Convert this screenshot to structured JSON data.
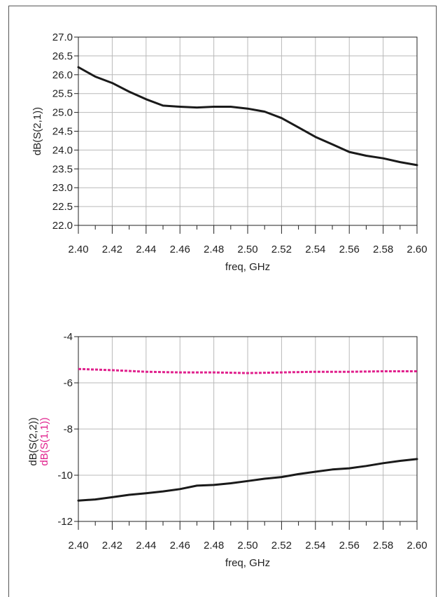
{
  "colors": {
    "grid": "#b9b9b9",
    "axis": "#222222",
    "series_black": "#1a1a1a",
    "series_magenta": "#e0208c"
  },
  "chart_data": [
    {
      "type": "line",
      "xlabel": "freq, GHz",
      "ylabel": "dB(S(2,1))",
      "xlim": [
        2.4,
        2.6
      ],
      "ylim": [
        22.0,
        27.0
      ],
      "x_ticks": [
        "2.40",
        "2.42",
        "2.44",
        "2.46",
        "2.48",
        "2.50",
        "2.52",
        "2.54",
        "2.56",
        "2.58",
        "2.60"
      ],
      "y_ticks": [
        "22.0",
        "22.5",
        "23.0",
        "23.5",
        "24.0",
        "24.5",
        "25.0",
        "25.5",
        "26.0",
        "26.5",
        "27.0"
      ],
      "grid": true,
      "series": [
        {
          "style": "solid",
          "color": "#1a1a1a",
          "x": [
            2.4,
            2.41,
            2.42,
            2.43,
            2.44,
            2.45,
            2.46,
            2.47,
            2.48,
            2.49,
            2.5,
            2.51,
            2.52,
            2.53,
            2.54,
            2.55,
            2.56,
            2.57,
            2.58,
            2.59,
            2.6
          ],
          "y": [
            26.2,
            25.95,
            25.78,
            25.55,
            25.35,
            25.18,
            25.15,
            25.13,
            25.15,
            25.15,
            25.1,
            25.02,
            24.85,
            24.6,
            24.35,
            24.15,
            23.95,
            23.85,
            23.78,
            23.68,
            23.6
          ]
        }
      ]
    },
    {
      "type": "line",
      "xlabel": "freq, GHz",
      "ylabel_lines": [
        {
          "text": "dB(S(2,2))",
          "color": "#222222"
        },
        {
          "text": "dB(S(1,1))",
          "color": "#e0208c"
        }
      ],
      "xlim": [
        2.4,
        2.6
      ],
      "ylim": [
        -12,
        -4
      ],
      "x_ticks": [
        "2.40",
        "2.42",
        "2.44",
        "2.46",
        "2.48",
        "2.50",
        "2.52",
        "2.54",
        "2.56",
        "2.58",
        "2.60"
      ],
      "y_ticks": [
        "-12",
        "-10",
        "-8",
        "-6",
        "-4"
      ],
      "grid": true,
      "series": [
        {
          "style": "dashed",
          "color": "#e0208c",
          "x": [
            2.4,
            2.42,
            2.44,
            2.46,
            2.48,
            2.5,
            2.52,
            2.54,
            2.56,
            2.58,
            2.6
          ],
          "y": [
            -5.4,
            -5.45,
            -5.52,
            -5.55,
            -5.55,
            -5.58,
            -5.55,
            -5.52,
            -5.52,
            -5.5,
            -5.5
          ]
        },
        {
          "style": "solid",
          "color": "#1a1a1a",
          "x": [
            2.4,
            2.41,
            2.42,
            2.43,
            2.44,
            2.45,
            2.46,
            2.47,
            2.48,
            2.49,
            2.5,
            2.51,
            2.52,
            2.53,
            2.54,
            2.55,
            2.56,
            2.57,
            2.58,
            2.59,
            2.6
          ],
          "y": [
            -11.1,
            -11.05,
            -10.95,
            -10.85,
            -10.78,
            -10.7,
            -10.6,
            -10.45,
            -10.42,
            -10.35,
            -10.25,
            -10.15,
            -10.08,
            -9.95,
            -9.85,
            -9.75,
            -9.7,
            -9.6,
            -9.48,
            -9.38,
            -9.3
          ]
        }
      ]
    }
  ]
}
